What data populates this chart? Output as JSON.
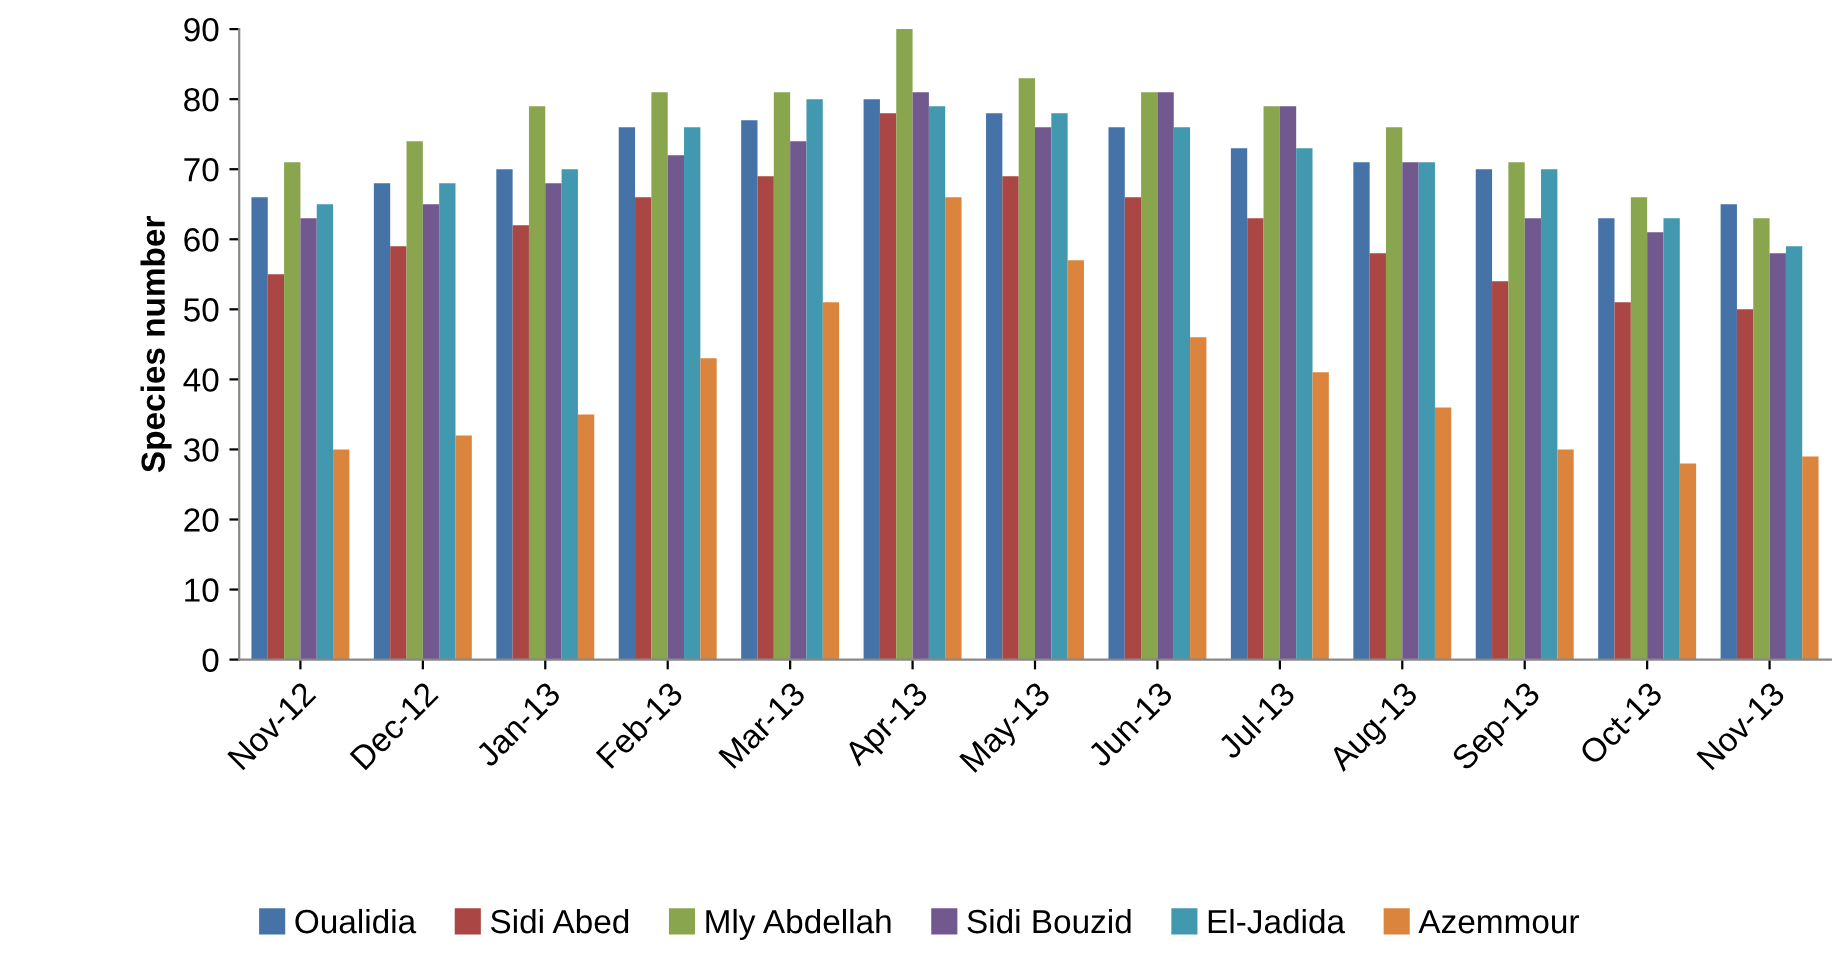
{
  "chart_data": {
    "type": "bar",
    "ylabel": "Species number",
    "categories": [
      "Nov-12",
      "Dec-12",
      "Jan-13",
      "Feb-13",
      "Mar-13",
      "Apr-13",
      "May-13",
      "Jun-13",
      "Jul-13",
      "Aug-13",
      "Sep-13",
      "Oct-13",
      "Nov-13"
    ],
    "series": [
      {
        "name": "Oualidia",
        "color": "#4573a7",
        "values": [
          66,
          68,
          70,
          76,
          77,
          80,
          78,
          76,
          73,
          71,
          70,
          63,
          65
        ]
      },
      {
        "name": "Sidi Abed",
        "color": "#aa4643",
        "values": [
          55,
          59,
          62,
          66,
          69,
          78,
          69,
          66,
          63,
          58,
          54,
          51,
          50
        ]
      },
      {
        "name": "Mly Abdellah",
        "color": "#89a54e",
        "values": [
          71,
          74,
          79,
          81,
          81,
          90,
          83,
          81,
          79,
          76,
          71,
          66,
          63
        ]
      },
      {
        "name": "Sidi Bouzid",
        "color": "#71588f",
        "values": [
          63,
          65,
          68,
          72,
          74,
          81,
          76,
          81,
          79,
          71,
          63,
          61,
          58
        ]
      },
      {
        "name": "El-Jadida",
        "color": "#4198af",
        "values": [
          65,
          68,
          70,
          76,
          80,
          79,
          78,
          76,
          73,
          71,
          70,
          63,
          59
        ]
      },
      {
        "name": "Azemmour",
        "color": "#db843d",
        "values": [
          30,
          32,
          35,
          43,
          51,
          66,
          57,
          46,
          41,
          36,
          30,
          28,
          29
        ]
      }
    ],
    "ylim": [
      0,
      90
    ],
    "yticks": [
      0,
      10,
      20,
      30,
      40,
      50,
      60,
      70,
      80,
      90
    ],
    "legend": "bottom"
  }
}
